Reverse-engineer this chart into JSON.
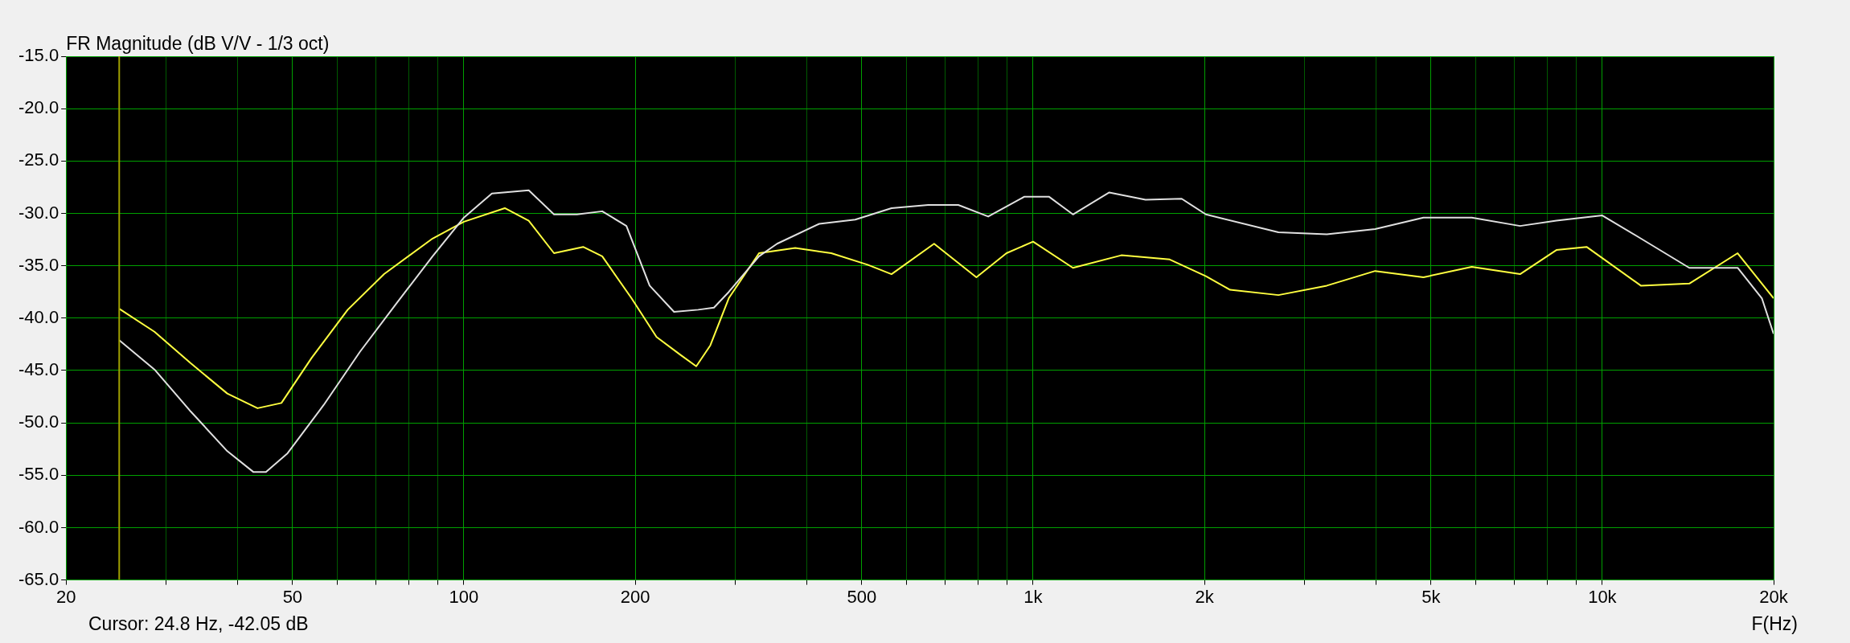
{
  "chart_data": {
    "type": "line",
    "title": "FR Magnitude (dB V/V - 1/3 oct)",
    "xlabel": "F(Hz)",
    "log": "x",
    "grid": true,
    "legend": false,
    "marker": "none",
    "line_style": "solid",
    "annotations": [
      "Cursor: 24.8 Hz, -42.05 dB"
    ],
    "xlim": [
      20,
      20000
    ],
    "xticks": [
      20,
      {
        "value": 30,
        "label": null
      },
      {
        "value": 40,
        "label": null
      },
      50,
      {
        "value": 60,
        "label": null
      },
      {
        "value": 70,
        "label": null
      },
      {
        "value": 80,
        "label": null
      },
      {
        "value": 90,
        "label": null
      },
      100,
      200,
      {
        "value": 300,
        "label": null
      },
      {
        "value": 400,
        "label": null
      },
      500,
      {
        "value": 600,
        "label": null
      },
      {
        "value": 700,
        "label": null
      },
      {
        "value": 800,
        "label": null
      },
      {
        "value": 900,
        "label": null
      },
      {
        "value": 1000,
        "label": "1k"
      },
      {
        "value": 2000,
        "label": "2k"
      },
      {
        "value": 3000,
        "label": null
      },
      {
        "value": 4000,
        "label": null
      },
      {
        "value": 5000,
        "label": "5k"
      },
      {
        "value": 6000,
        "label": null
      },
      {
        "value": 7000,
        "label": null
      },
      {
        "value": 8000,
        "label": null
      },
      {
        "value": 9000,
        "label": null
      },
      {
        "value": 10000,
        "label": "10k"
      },
      {
        "value": 20000,
        "label": "20k"
      }
    ],
    "ylim": [
      -65,
      -15
    ],
    "yticks": [
      {
        "value": -15,
        "label": "-15.0"
      },
      {
        "value": -20,
        "label": "-20.0"
      },
      {
        "value": -25,
        "label": "-25.0"
      },
      {
        "value": -30,
        "label": "-30.0"
      },
      {
        "value": -35,
        "label": "-35.0"
      },
      {
        "value": -40,
        "label": "-40.0"
      },
      {
        "value": -45,
        "label": "-45.0"
      },
      {
        "value": -50,
        "label": "-50.0"
      },
      {
        "value": -55,
        "label": "-55.0"
      },
      {
        "value": -60,
        "label": "-60.0"
      },
      {
        "value": -65,
        "label": "-65.0"
      }
    ],
    "ref_lines": [
      {
        "axis": "x",
        "value": 24.8,
        "color": "#a0a000"
      }
    ],
    "series": [
      {
        "color": "#e0e0e0",
        "x": [
          24.8,
          28.6,
          33.1,
          38.4,
          42.7,
          44.9,
          49,
          56.7,
          65.7,
          76.1,
          88.1,
          100,
          112,
          130,
          144,
          158,
          175,
          193,
          212,
          234,
          258,
          275,
          292,
          330,
          355,
          421,
          487,
          564,
          654,
          739,
          834,
          966,
          1066,
          1175,
          1361,
          1576,
          1824,
          2012,
          2698,
          3281,
          3990,
          4851,
          5898,
          7171,
          8306,
          10000,
          11690,
          14220,
          17290,
          19070,
          20000
        ],
        "values": [
          -42.1,
          -44.9,
          -48.9,
          -52.7,
          -54.7,
          -54.7,
          -52.9,
          -48.3,
          -43.2,
          -38.6,
          -34.1,
          -30.4,
          -28.1,
          -27.8,
          -30.1,
          -30.1,
          -29.8,
          -31.2,
          -36.9,
          -39.4,
          -39.2,
          -39,
          -37.5,
          -34.1,
          -32.9,
          -31,
          -30.6,
          -29.5,
          -29.2,
          -29.2,
          -30.3,
          -28.4,
          -28.4,
          -30.1,
          -28,
          -28.7,
          -28.6,
          -30.1,
          -31.8,
          -32,
          -31.5,
          -30.4,
          -30.4,
          -31.2,
          -30.7,
          -30.2,
          -32.4,
          -35.2,
          -35.2,
          -38.1,
          -41.5
        ]
      },
      {
        "color": "#ffff40",
        "x": [
          24.8,
          28.6,
          33.1,
          38.4,
          43.4,
          47.8,
          54,
          62.5,
          72.4,
          88.1,
          100,
          118,
          130,
          144,
          162,
          175,
          197,
          218,
          240,
          256,
          271,
          292,
          330,
          382,
          442,
          512,
          564,
          670,
          795,
          898,
          1000,
          1175,
          1429,
          1738,
          2012,
          2219,
          2698,
          3281,
          3990,
          4851,
          5898,
          7171,
          8306,
          9385,
          11690,
          14220,
          17290,
          20000
        ],
        "values": [
          -39.1,
          -41.3,
          -44.3,
          -47.2,
          -48.6,
          -48.1,
          -43.8,
          -39.2,
          -35.8,
          -32.4,
          -30.8,
          -29.5,
          -30.7,
          -33.8,
          -33.2,
          -34.1,
          -38.1,
          -41.8,
          -43.5,
          -44.6,
          -42.6,
          -38.1,
          -33.8,
          -33.3,
          -33.8,
          -34.9,
          -35.8,
          -32.9,
          -36.1,
          -33.8,
          -32.7,
          -35.2,
          -34,
          -34.4,
          -36,
          -37.3,
          -37.8,
          -36.9,
          -35.5,
          -36.1,
          -35.1,
          -35.8,
          -33.5,
          -33.2,
          -36.9,
          -36.7,
          -33.8,
          -38.1
        ]
      }
    ]
  }
}
